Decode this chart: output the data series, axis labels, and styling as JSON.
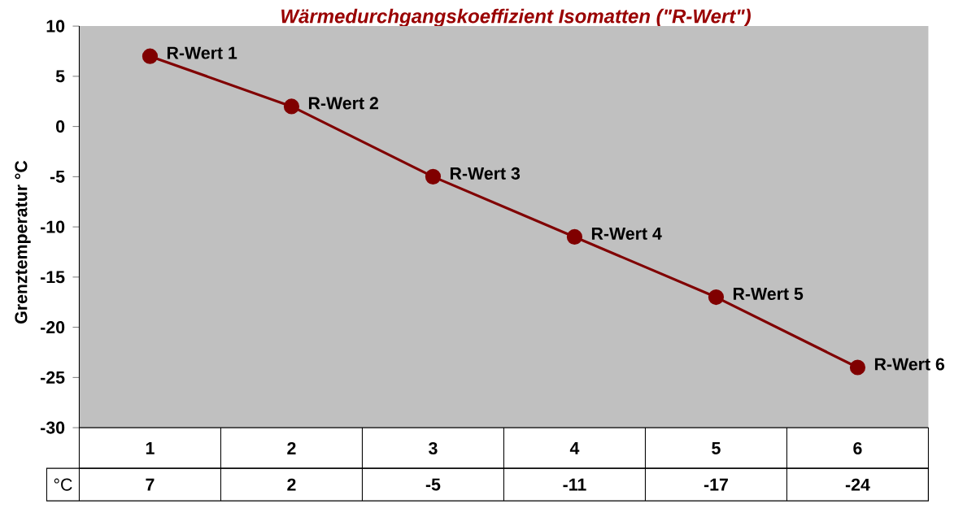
{
  "chart_data": {
    "type": "line",
    "title": "Wärmedurchgangskoeffizient Isomatten (\"R-Wert\")",
    "ylabel": "Grenztemperatur °C",
    "categories": [
      "1",
      "2",
      "3",
      "4",
      "5",
      "6"
    ],
    "series": [
      {
        "name": "°C",
        "color": "#800000",
        "values": [
          7,
          2,
          -5,
          -11,
          -17,
          -24
        ]
      }
    ],
    "ylim": [
      -30,
      10
    ],
    "yticks": [
      -30,
      -25,
      -20,
      -15,
      -10,
      -5,
      0,
      5,
      10
    ],
    "marker": "circle",
    "data_labels": true,
    "annotations": [
      {
        "text": "R-Wert 1",
        "x": "1",
        "y": 7
      },
      {
        "text": "R-Wert 2",
        "x": "2",
        "y": 2
      },
      {
        "text": "R-Wert 3",
        "x": "3",
        "y": -5
      },
      {
        "text": "R-Wert 4",
        "x": "4",
        "y": -11
      },
      {
        "text": "R-Wert 5",
        "x": "5",
        "y": -17
      },
      {
        "text": "R-Wert 6",
        "x": "6",
        "y": -24
      }
    ]
  }
}
